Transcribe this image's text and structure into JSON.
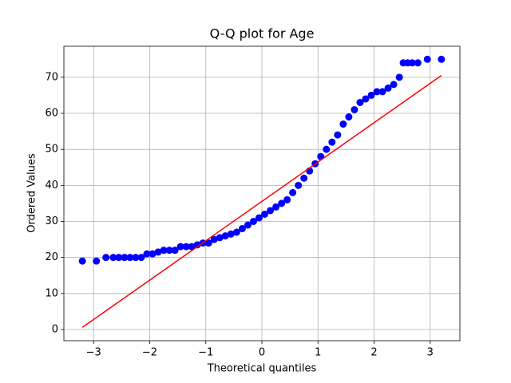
{
  "chart_data": {
    "type": "scatter",
    "title": "Q-Q plot for Age",
    "xlabel": "Theoretical quantiles",
    "ylabel": "Ordered Values",
    "xlim": [
      -3.53,
      3.53
    ],
    "ylim": [
      -3.1,
      78.6
    ],
    "xticks": [
      {
        "value": -3,
        "label": "−3"
      },
      {
        "value": -2,
        "label": "−2"
      },
      {
        "value": -1,
        "label": "−1"
      },
      0,
      1,
      2,
      3
    ],
    "yticks": [
      0,
      10,
      20,
      30,
      40,
      50,
      60,
      70
    ],
    "grid": true,
    "points": {
      "color": "#0000ff",
      "x": [
        -3.2,
        -2.95,
        -2.78,
        -2.65,
        -2.55,
        -2.45,
        -2.35,
        -2.25,
        -2.15,
        -2.05,
        -1.95,
        -1.85,
        -1.75,
        -1.65,
        -1.55,
        -1.45,
        -1.35,
        -1.25,
        -1.15,
        -1.05,
        -0.95,
        -0.85,
        -0.75,
        -0.65,
        -0.55,
        -0.45,
        -0.35,
        -0.25,
        -0.15,
        -0.05,
        0.05,
        0.15,
        0.25,
        0.35,
        0.45,
        0.55,
        0.65,
        0.75,
        0.85,
        0.95,
        1.05,
        1.15,
        1.25,
        1.35,
        1.45,
        1.55,
        1.65,
        1.75,
        1.85,
        1.95,
        2.05,
        2.15,
        2.25,
        2.35,
        2.45,
        2.52,
        2.6,
        2.68,
        2.78,
        2.95,
        3.2
      ],
      "y": [
        19,
        19,
        20,
        20,
        20,
        20,
        20,
        20,
        20,
        21,
        21,
        21.5,
        22,
        22,
        22,
        23,
        23,
        23,
        23.5,
        24,
        24,
        25,
        25.5,
        26,
        26.5,
        27,
        28,
        29,
        30,
        31,
        32,
        33,
        34,
        35,
        36,
        38,
        40,
        42,
        44,
        46,
        48,
        50,
        52,
        54,
        57,
        59,
        61,
        63,
        64,
        65,
        66,
        66,
        67,
        68,
        70,
        74,
        74,
        74,
        74,
        75,
        75
      ]
    },
    "fit_line": {
      "color": "#ff0000",
      "x": [
        -3.2,
        3.2
      ],
      "y": [
        0.6,
        70.5
      ]
    }
  }
}
